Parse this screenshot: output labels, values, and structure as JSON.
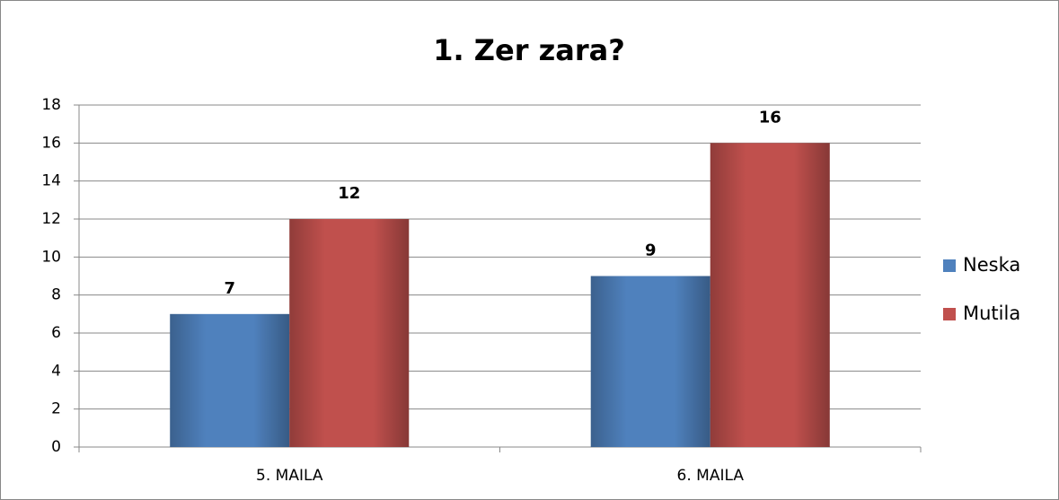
{
  "chart_data": {
    "type": "bar",
    "title": "1. Zer zara?",
    "categories": [
      "5. MAILA",
      "6. MAILA"
    ],
    "series": [
      {
        "name": "Neska",
        "color": "#4f81bd",
        "values": [
          7,
          9
        ]
      },
      {
        "name": "Mutila",
        "color": "#c0504d",
        "values": [
          12,
          16
        ]
      }
    ],
    "ylim": [
      0,
      18
    ],
    "yticks": [
      0,
      2,
      4,
      6,
      8,
      10,
      12,
      14,
      16,
      18
    ],
    "grid": true,
    "legend": "right"
  }
}
